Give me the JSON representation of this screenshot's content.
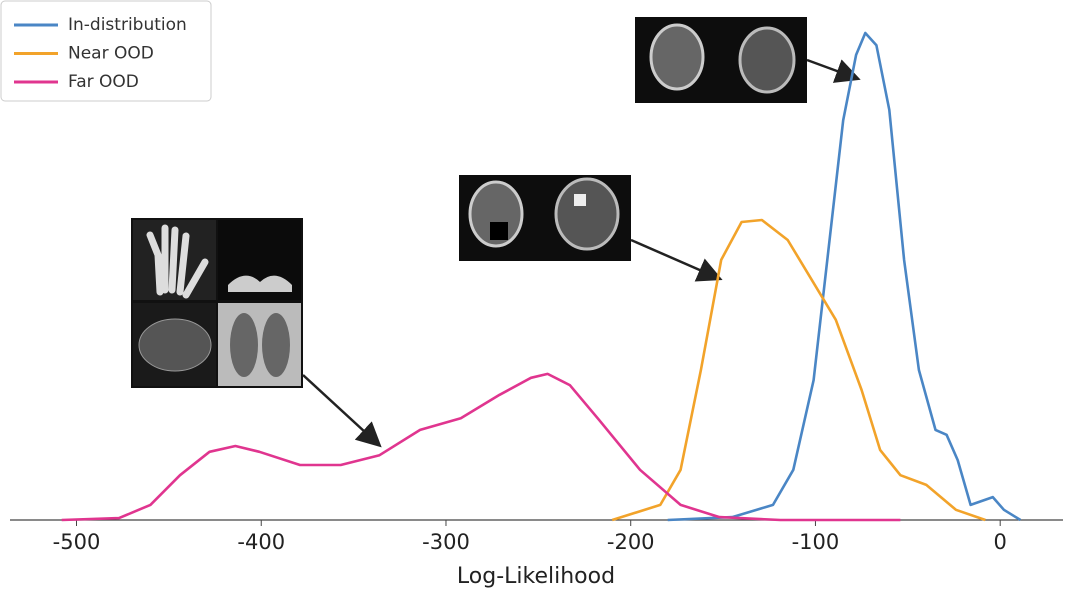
{
  "chart_data": {
    "type": "line",
    "xlabel": "Log-Likelihood",
    "xlim": [
      -536,
      34
    ],
    "xticks": [
      -500,
      -400,
      -300,
      -200,
      -100,
      0
    ],
    "ylim": [
      0,
      1
    ],
    "legend": "upper left",
    "series": [
      {
        "name": "In-distribution",
        "color": "#4a86c5",
        "x": [
          -180,
          -145,
          -123,
          -112,
          -101,
          -93,
          -85,
          -78,
          -73,
          -67,
          -60,
          -52,
          -44,
          -35,
          -29,
          -23,
          -16,
          -4,
          2,
          11
        ],
        "values": [
          0,
          0.006,
          0.031,
          0.103,
          0.287,
          0.554,
          0.821,
          0.955,
          1.0,
          0.975,
          0.842,
          0.534,
          0.308,
          0.185,
          0.175,
          0.123,
          0.031,
          0.047,
          0.021,
          0
        ]
      },
      {
        "name": "Near OOD",
        "color": "#f2a32a",
        "x": [
          -210,
          -184,
          -173,
          -162,
          -151,
          -140,
          -129,
          -115,
          -102,
          -89,
          -75,
          -65,
          -54,
          -40,
          -24,
          -8
        ],
        "values": [
          0,
          0.031,
          0.103,
          0.308,
          0.534,
          0.612,
          0.616,
          0.575,
          0.493,
          0.411,
          0.267,
          0.144,
          0.092,
          0.072,
          0.021,
          0
        ]
      },
      {
        "name": "Far OOD",
        "color": "#e0358f",
        "x": [
          -508,
          -477,
          -460,
          -444,
          -428,
          -414,
          -401,
          -379,
          -357,
          -336,
          -314,
          -292,
          -271,
          -254,
          -245,
          -233,
          -217,
          -195,
          -173,
          -152,
          -119,
          -54
        ],
        "values": [
          0,
          0.004,
          0.031,
          0.092,
          0.14,
          0.152,
          0.14,
          0.113,
          0.113,
          0.133,
          0.185,
          0.209,
          0.257,
          0.292,
          0.3,
          0.277,
          0.205,
          0.103,
          0.031,
          0.006,
          0,
          0
        ]
      }
    ]
  }
}
